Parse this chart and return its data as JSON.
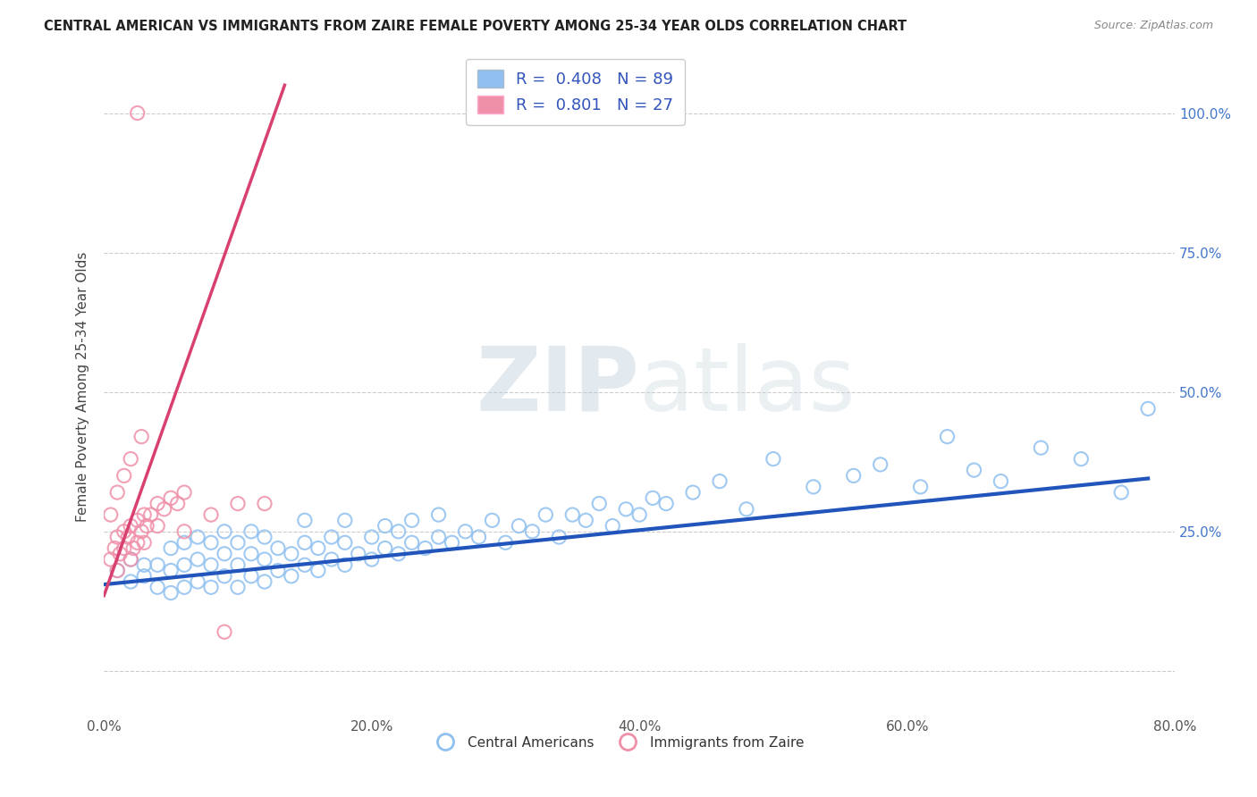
{
  "title": "CENTRAL AMERICAN VS IMMIGRANTS FROM ZAIRE FEMALE POVERTY AMONG 25-34 YEAR OLDS CORRELATION CHART",
  "source": "Source: ZipAtlas.com",
  "ylabel": "Female Poverty Among 25-34 Year Olds",
  "xlim": [
    0.0,
    0.8
  ],
  "ylim": [
    -0.08,
    1.1
  ],
  "x_ticks": [
    0.0,
    0.2,
    0.4,
    0.6,
    0.8
  ],
  "x_tick_labels": [
    "0.0%",
    "20.0%",
    "40.0%",
    "60.0%",
    "80.0%"
  ],
  "y_ticks": [
    0.0,
    0.25,
    0.5,
    0.75,
    1.0
  ],
  "y_right_labels": [
    "",
    "25.0%",
    "50.0%",
    "75.0%",
    "100.0%"
  ],
  "blue_R": 0.408,
  "blue_N": 89,
  "pink_R": 0.801,
  "pink_N": 27,
  "blue_color": "#90C0F0",
  "pink_color": "#F090A8",
  "blue_line_color": "#2255BB",
  "pink_line_color": "#D84070",
  "watermark_zip": "ZIP",
  "watermark_atlas": "atlas",
  "legend_label_blue": "Central Americans",
  "legend_label_pink": "Immigrants from Zaire",
  "grid_color": "#CCCCCC",
  "blue_scatter_x": [
    0.01,
    0.02,
    0.02,
    0.03,
    0.03,
    0.04,
    0.04,
    0.05,
    0.05,
    0.05,
    0.06,
    0.06,
    0.06,
    0.07,
    0.07,
    0.07,
    0.08,
    0.08,
    0.08,
    0.09,
    0.09,
    0.09,
    0.1,
    0.1,
    0.1,
    0.11,
    0.11,
    0.11,
    0.12,
    0.12,
    0.12,
    0.13,
    0.13,
    0.14,
    0.14,
    0.15,
    0.15,
    0.15,
    0.16,
    0.16,
    0.17,
    0.17,
    0.18,
    0.18,
    0.18,
    0.19,
    0.2,
    0.2,
    0.21,
    0.21,
    0.22,
    0.22,
    0.23,
    0.23,
    0.24,
    0.25,
    0.25,
    0.26,
    0.27,
    0.28,
    0.29,
    0.3,
    0.31,
    0.32,
    0.33,
    0.34,
    0.35,
    0.36,
    0.37,
    0.38,
    0.39,
    0.4,
    0.41,
    0.42,
    0.44,
    0.46,
    0.48,
    0.5,
    0.53,
    0.56,
    0.58,
    0.61,
    0.63,
    0.65,
    0.67,
    0.7,
    0.73,
    0.76,
    0.78
  ],
  "blue_scatter_y": [
    0.18,
    0.16,
    0.2,
    0.17,
    0.19,
    0.15,
    0.19,
    0.14,
    0.18,
    0.22,
    0.15,
    0.19,
    0.23,
    0.16,
    0.2,
    0.24,
    0.15,
    0.19,
    0.23,
    0.17,
    0.21,
    0.25,
    0.15,
    0.19,
    0.23,
    0.17,
    0.21,
    0.25,
    0.16,
    0.2,
    0.24,
    0.18,
    0.22,
    0.17,
    0.21,
    0.19,
    0.23,
    0.27,
    0.18,
    0.22,
    0.2,
    0.24,
    0.19,
    0.23,
    0.27,
    0.21,
    0.2,
    0.24,
    0.22,
    0.26,
    0.21,
    0.25,
    0.23,
    0.27,
    0.22,
    0.24,
    0.28,
    0.23,
    0.25,
    0.24,
    0.27,
    0.23,
    0.26,
    0.25,
    0.28,
    0.24,
    0.28,
    0.27,
    0.3,
    0.26,
    0.29,
    0.28,
    0.31,
    0.3,
    0.32,
    0.34,
    0.29,
    0.38,
    0.33,
    0.35,
    0.37,
    0.33,
    0.42,
    0.36,
    0.34,
    0.4,
    0.38,
    0.32,
    0.47
  ],
  "pink_scatter_x": [
    0.005,
    0.008,
    0.01,
    0.01,
    0.012,
    0.015,
    0.015,
    0.018,
    0.02,
    0.02,
    0.022,
    0.025,
    0.025,
    0.028,
    0.03,
    0.03,
    0.032,
    0.035,
    0.04,
    0.04,
    0.045,
    0.05,
    0.055,
    0.06,
    0.08,
    0.1,
    0.12
  ],
  "pink_scatter_y": [
    0.2,
    0.22,
    0.18,
    0.24,
    0.21,
    0.22,
    0.25,
    0.24,
    0.2,
    0.26,
    0.22,
    0.23,
    0.27,
    0.25,
    0.23,
    0.28,
    0.26,
    0.28,
    0.26,
    0.3,
    0.29,
    0.31,
    0.3,
    0.32,
    0.28,
    0.3,
    0.3
  ],
  "pink_extra_x": [
    0.005,
    0.01,
    0.015,
    0.02,
    0.025,
    0.028,
    0.06,
    0.09
  ],
  "pink_extra_y": [
    0.28,
    0.32,
    0.35,
    0.38,
    1.0,
    0.42,
    0.25,
    0.07
  ],
  "pink_line_x0": 0.0,
  "pink_line_y0": 0.135,
  "pink_line_x1": 0.135,
  "pink_line_y1": 1.05,
  "blue_line_x0": 0.0,
  "blue_line_y0": 0.155,
  "blue_line_x1": 0.78,
  "blue_line_y1": 0.345
}
